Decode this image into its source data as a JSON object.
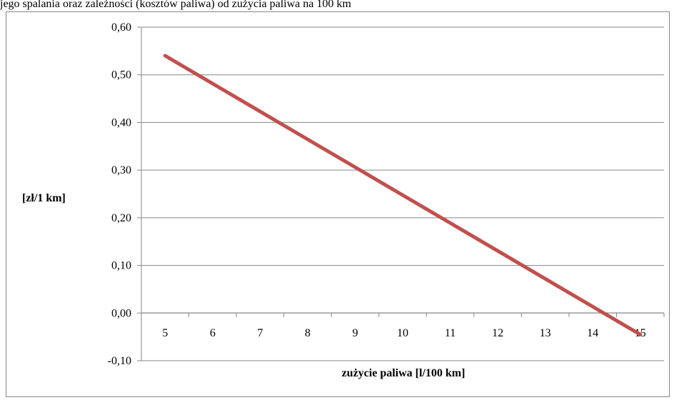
{
  "caption": "jego spalania oraz zależności (kosztów paliwa) od zużycia paliwa na 100 km",
  "chart_data": {
    "type": "line",
    "title": "",
    "xlabel": "zużycie paliwa [l/100 km]",
    "ylabel": "[zł/1 km]",
    "x_ticks": [
      "5",
      "6",
      "7",
      "8",
      "9",
      "10",
      "11",
      "12",
      "13",
      "14",
      "15"
    ],
    "y_ticks": [
      "-0,10",
      "0,00",
      "0,10",
      "0,20",
      "0,30",
      "0,40",
      "0,50",
      "0,60"
    ],
    "xlim": [
      4.5,
      15.5
    ],
    "ylim": [
      -0.1,
      0.6
    ],
    "grid": "horizontal",
    "legend": "none",
    "series": [
      {
        "color": "#C0504D",
        "x": [
          5,
          15
        ],
        "y": [
          0.54,
          -0.045
        ]
      }
    ]
  }
}
